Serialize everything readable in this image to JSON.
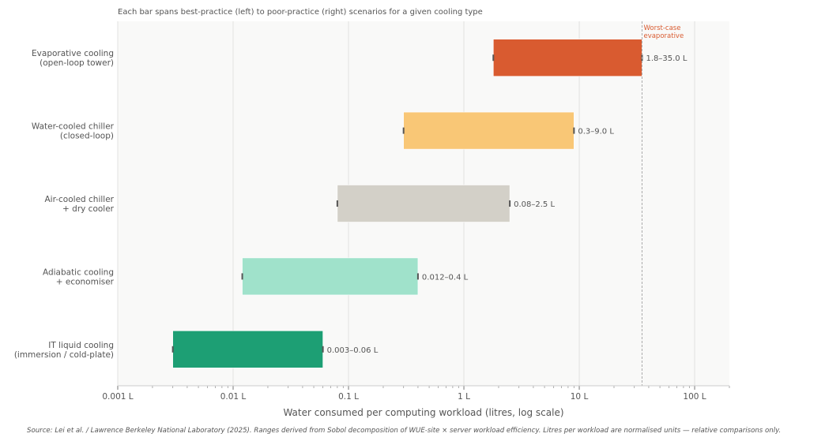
{
  "chart_data": {
    "type": "bar",
    "orientation": "horizontal-range",
    "subtitle": "Each bar spans best-practice (left) to poor-practice (right) scenarios for a given cooling type",
    "xlabel": "Water consumed per computing workload  (litres, log scale)",
    "ylabel": "",
    "xscale": "log",
    "xlim": [
      0.001,
      200
    ],
    "xticks": [
      0.001,
      0.01,
      0.1,
      1,
      10,
      100
    ],
    "xtick_labels": [
      "0.001 L",
      "0.01 L",
      "0.1 L",
      "1 L",
      "10 L",
      "100 L"
    ],
    "grid": "vertical major",
    "categories": [
      "Evaporative cooling\n(open-loop tower)",
      "Water-cooled chiller\n(closed-loop)",
      "Air-cooled chiller\n+ dry cooler",
      "Adiabatic cooling\n+ economiser",
      "IT liquid cooling\n(immersion / cold-plate)"
    ],
    "ranges": [
      [
        1.8,
        35.0
      ],
      [
        0.3,
        9.0
      ],
      [
        0.08,
        2.5
      ],
      [
        0.012,
        0.4
      ],
      [
        0.003,
        0.06
      ]
    ],
    "data_labels": [
      "1.8–35.0 L",
      "0.3–9.0 L",
      "0.08–2.5 L",
      "0.012–0.4 L",
      "0.003–0.06 L"
    ],
    "colors": [
      "#d95b30",
      "#f9c776",
      "#d3d0c8",
      "#a0e2cb",
      "#1d9f74"
    ],
    "reference_line": {
      "value": 35.0,
      "label": "Worst-case\nevaporative",
      "color": "#d95b30"
    },
    "source": "Source: Lei et al. / Lawrence Berkeley National Laboratory (2025). Ranges derived from Sobol decomposition of WUE-site × server workload efficiency. Litres per workload are normalised units — relative comparisons only."
  }
}
